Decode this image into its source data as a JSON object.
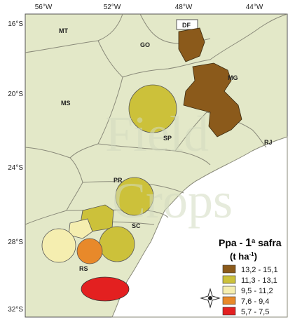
{
  "longitude_labels": [
    "56°W",
    "52°W",
    "48°W",
    "44°W"
  ],
  "latitude_labels": [
    "16°S",
    "20°S",
    "24°S",
    "28°S",
    "32°S"
  ],
  "states": [
    "MT",
    "GO",
    "DF",
    "MG",
    "MS",
    "SP",
    "RJ",
    "PR",
    "SC",
    "RS"
  ],
  "watermark": [
    "Field",
    "Crops"
  ],
  "legend": {
    "title": {
      "prefix": "Ppa - ",
      "bold": "1",
      "suffix": "ª safra"
    },
    "unit": {
      "prefix": "(t ha",
      "sup": "-1",
      "suffix": ")"
    },
    "items": [
      {
        "label": "13,2 - 15,1",
        "color": "#8b5a1b"
      },
      {
        "label": "11,3 - 13,1",
        "color": "#ccc13a"
      },
      {
        "label": "9,5 - 11,2",
        "color": "#f5eeb0"
      },
      {
        "label": "7,6 - 9,4",
        "color": "#e8892a"
      },
      {
        "label": "5,7 - 7,5",
        "color": "#e32020"
      }
    ]
  }
}
